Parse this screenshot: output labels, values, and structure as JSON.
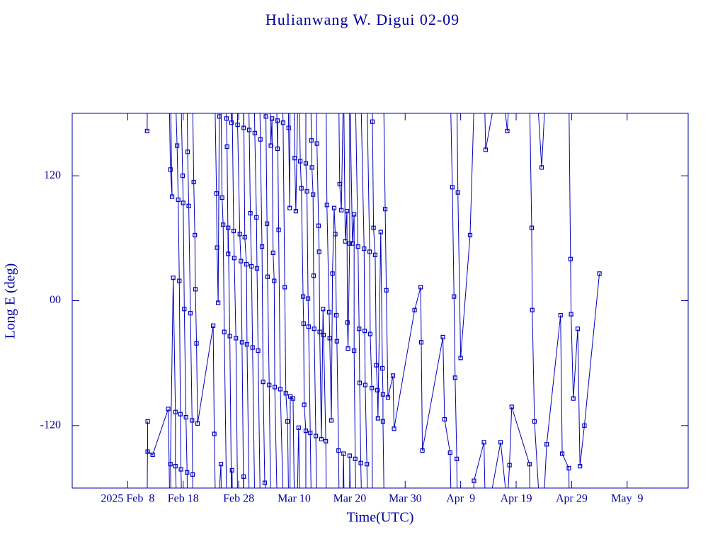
{
  "chart_data": {
    "type": "line",
    "title": "Hulianwang W. Digui 02-09",
    "x_label": "Time(UTC)",
    "y_label": "Long E (deg)",
    "color": "#0000c0",
    "xlim": [
      29,
      140
    ],
    "ylim": [
      -180,
      180
    ],
    "xticks": [
      {
        "value": 39,
        "label": "2025 Feb  8"
      },
      {
        "value": 49,
        "label": "Feb 18"
      },
      {
        "value": 59,
        "label": "Feb 28"
      },
      {
        "value": 69,
        "label": "Mar 10"
      },
      {
        "value": 79,
        "label": "Mar 20"
      },
      {
        "value": 89,
        "label": "Mar 30"
      },
      {
        "value": 99,
        "label": "Apr  9"
      },
      {
        "value": 109,
        "label": "Apr 19"
      },
      {
        "value": 119,
        "label": "Apr 29"
      },
      {
        "value": 129,
        "label": "May  9"
      }
    ],
    "yticks": [
      -120,
      {
        "value": 0,
        "label": "00"
      },
      120
    ],
    "x": [
      42.5,
      42.6,
      42.6,
      43.5,
      46.3,
      46.7,
      47.0,
      46.7,
      47.2,
      47.6,
      47.6,
      47.9,
      48.1,
      48.3,
      48.5,
      48.6,
      48.9,
      49.0,
      49.2,
      49.5,
      49.7,
      49.8,
      50.0,
      50.3,
      50.6,
      50.7,
      50.9,
      51.1,
      51.2,
      51.4,
      51.6,
      54.4,
      54.6,
      55.0,
      55.1,
      55.3,
      55.5,
      55.8,
      56.0,
      56.2,
      56.4,
      56.8,
      56.9,
      57.1,
      57.1,
      57.4,
      57.7,
      57.8,
      58.1,
      58.2,
      58.5,
      58.8,
      59.2,
      59.4,
      59.6,
      59.9,
      59.9,
      60.1,
      60.4,
      60.5,
      60.9,
      61.1,
      61.3,
      61.5,
      61.9,
      62.2,
      62.3,
      62.5,
      62.9,
      63.2,
      63.4,
      63.7,
      63.9,
      64.1,
      64.2,
      64.5,
      64.8,
      65.0,
      65.2,
      65.4,
      65.5,
      66.0,
      66.0,
      66.2,
      66.5,
      67.0,
      67.3,
      67.5,
      67.8,
      68.0,
      68.2,
      68.3,
      68.8,
      69.1,
      69.3,
      69.8,
      70.1,
      70.3,
      70.6,
      70.7,
      70.8,
      71.1,
      71.1,
      71.3,
      71.5,
      71.6,
      71.9,
      72.1,
      72.2,
      72.4,
      72.5,
      72.6,
      72.9,
      73.1,
      73.4,
      73.5,
      73.6,
      73.9,
      74.2,
      74.3,
      74.7,
      74.9,
      75.3,
      75.4,
      75.7,
      75.9,
      76.2,
      76.4,
      76.6,
      76.7,
      77.0,
      77.2,
      77.5,
      77.9,
      78.2,
      78.5,
      78.6,
      78.7,
      79.0,
      79.0,
      79.5,
      79.8,
      79.8,
      80.0,
      80.5,
      80.7,
      80.8,
      81.0,
      81.6,
      81.7,
      81.8,
      82.1,
      82.6,
      82.7,
      83.0,
      83.1,
      83.3,
      83.6,
      83.8,
      84.0,
      84.1,
      84.6,
      84.9,
      85.0,
      85.0,
      85.4,
      85.6,
      85.9,
      86.8,
      87.0,
      90.7,
      91.8,
      91.9,
      92.1,
      95.8,
      96.1,
      97.1,
      97.5,
      97.8,
      98.0,
      98.3,
      98.5,
      99.0,
      100.7,
      101.4,
      103.2,
      103.5,
      106.2,
      107.4,
      107.8,
      108.2,
      111.4,
      111.8,
      111.9,
      112.3,
      113.6,
      114.5,
      117.0,
      117.3,
      118.5,
      118.8,
      118.9,
      119.3,
      120.1,
      120.5,
      121.3,
      124.0
    ],
    "values": [
      163,
      -116,
      -145,
      -148,
      -104,
      126,
      100,
      -157,
      22,
      -107,
      -159,
      149,
      97,
      19,
      -109,
      -162,
      120,
      94,
      -8,
      -112,
      -165,
      143,
      91,
      -12,
      -115,
      -167,
      114,
      63,
      11,
      -41,
      -118,
      -24,
      -128,
      103,
      51,
      -2,
      177,
      -157,
      99,
      73,
      -30,
      175,
      148,
      45,
      70,
      -34,
      171,
      -163,
      67,
      41,
      -36,
      169,
      64,
      38,
      -40,
      166,
      -169,
      61,
      35,
      -42,
      164,
      84,
      33,
      -45,
      161,
      80,
      31,
      -48,
      155,
      52,
      -78,
      -175,
      177,
      74,
      23,
      -81,
      149,
      175,
      46,
      19,
      -83,
      146,
      173,
      68,
      -85,
      171,
      13,
      -89,
      -116,
      166,
      89,
      -92,
      -94,
      137,
      86,
      -122,
      134,
      108,
      4,
      -22,
      -100,
      -125,
      132,
      105,
      2,
      -25,
      -127,
      154,
      128,
      102,
      24,
      -27,
      -130,
      151,
      72,
      47,
      -30,
      -133,
      -8,
      -33,
      -135,
      92,
      -11,
      -36,
      -115,
      26,
      89,
      64,
      -14,
      -39,
      -144,
      112,
      87,
      -147,
      57,
      86,
      -21,
      -46,
      55,
      -149,
      55,
      83,
      -48,
      -152,
      52,
      -27,
      -79,
      -156,
      50,
      -29,
      -81,
      -157,
      47,
      -32,
      -84,
      172,
      70,
      44,
      -62,
      -86,
      -113,
      66,
      -65,
      -90,
      -116,
      88,
      10,
      -93,
      -72,
      -123,
      -9,
      13,
      -40,
      -144,
      -35,
      -114,
      -146,
      109,
      4,
      -74,
      -152,
      104,
      -55,
      63,
      -173,
      -136,
      145,
      -136,
      163,
      -158,
      -102,
      -157,
      70,
      -9,
      -116,
      128,
      -138,
      -14,
      -147,
      -161,
      40,
      -13,
      -94,
      -27,
      -159,
      -120,
      26
    ]
  }
}
